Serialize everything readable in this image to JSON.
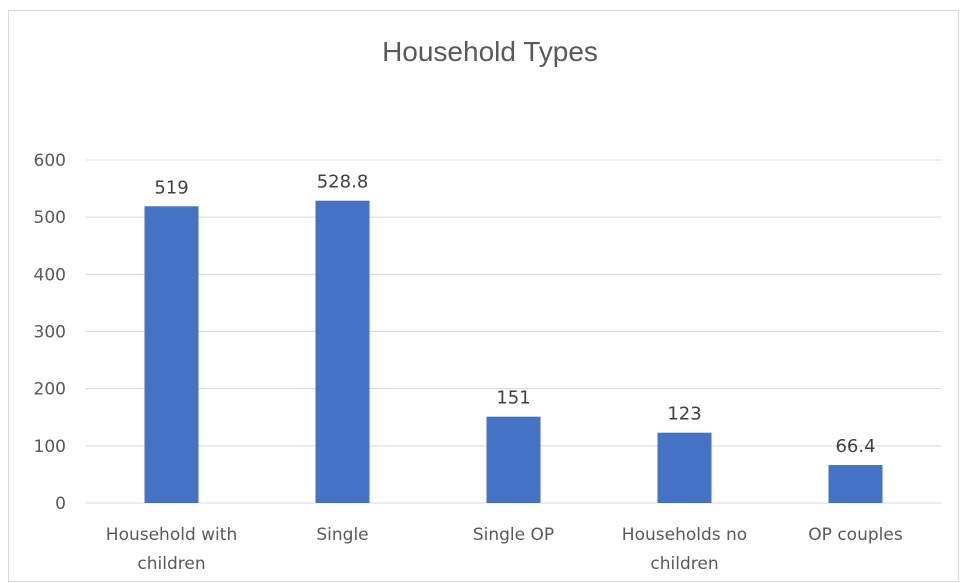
{
  "chart_data": {
    "type": "bar",
    "title": "Household Types",
    "categories": [
      [
        "Household with",
        "children"
      ],
      [
        "Single"
      ],
      [
        "Single OP"
      ],
      [
        "Households no",
        "children"
      ],
      [
        "OP couples"
      ]
    ],
    "values": [
      519,
      528.8,
      151,
      123,
      66.4
    ],
    "data_labels": [
      "519",
      "528.8",
      "151",
      "123",
      "66.4"
    ],
    "ylim": [
      0,
      600
    ],
    "yticks": [
      0,
      100,
      200,
      300,
      400,
      500,
      600
    ],
    "grid": true,
    "legend": "none",
    "bar_color": "#4472c4"
  }
}
